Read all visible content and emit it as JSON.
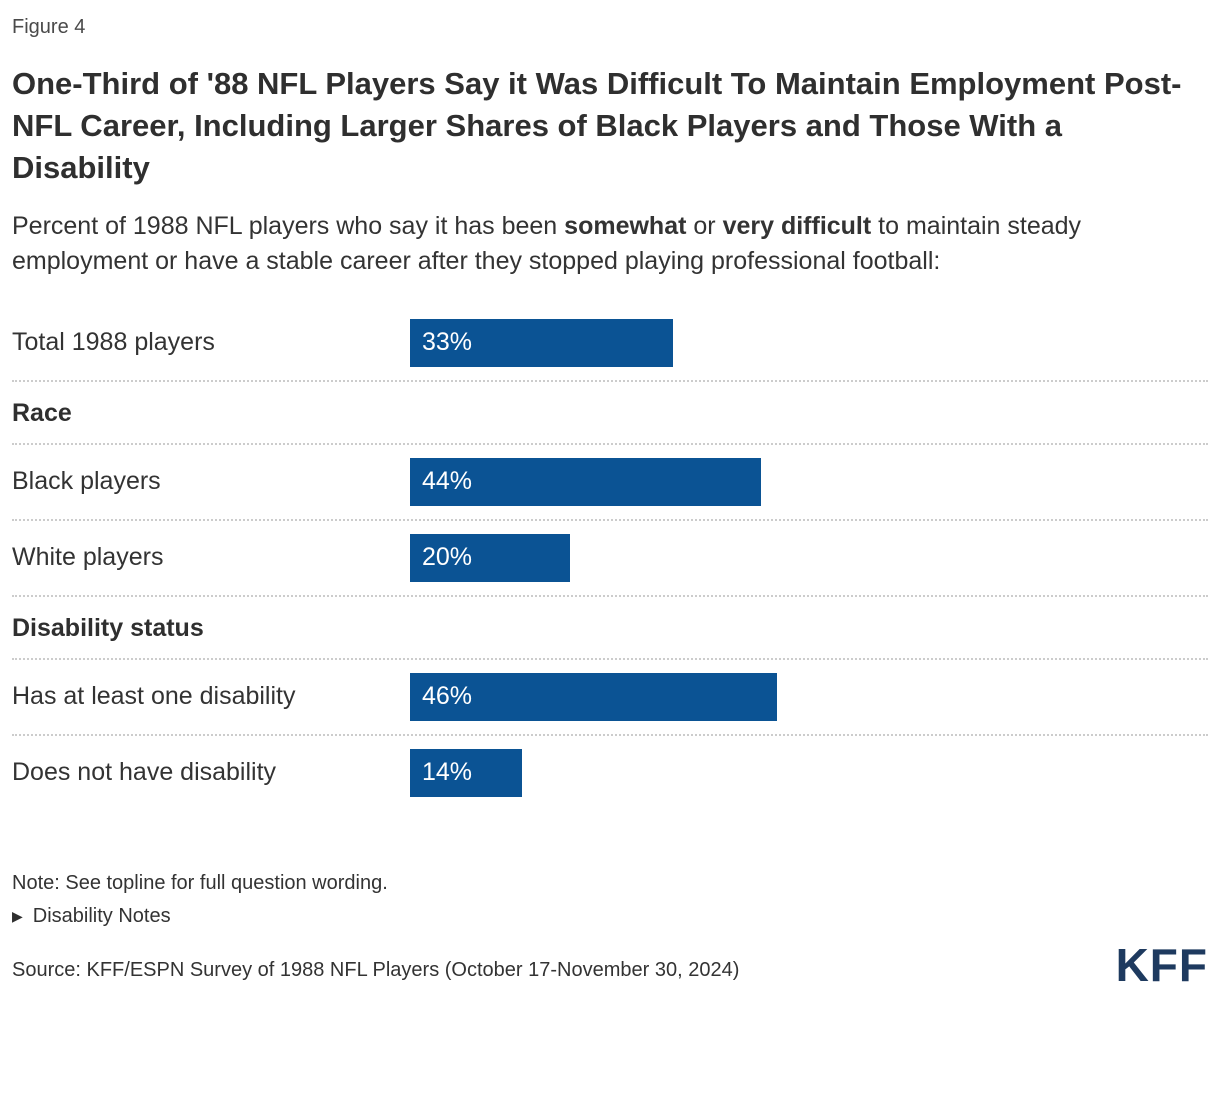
{
  "figure_label": "Figure 4",
  "title": "One-Third of '88 NFL Players Say it Was Difficult To Maintain Employment Post-NFL Career, Including Larger Shares of Black Players and Those With a Disability",
  "subtitle": {
    "segments": [
      {
        "text": "Percent of 1988 NFL players who say it has been ",
        "bold": false
      },
      {
        "text": "somewhat",
        "bold": true
      },
      {
        "text": " or ",
        "bold": false
      },
      {
        "text": "very difficult",
        "bold": true
      },
      {
        "text": " to maintain steady employment or have a stable career after they stopped playing professional football:",
        "bold": false
      }
    ]
  },
  "chart_data": {
    "type": "bar",
    "orientation": "horizontal",
    "axis_max": 100,
    "unit": "%",
    "categories": [
      "Total 1988 players",
      "Black players",
      "White players",
      "Has at least one disability",
      "Does not have disability"
    ],
    "values": [
      33,
      44,
      20,
      46,
      14
    ],
    "sections": [
      {
        "header": "Race",
        "categories": [
          "Black players",
          "White players"
        ]
      },
      {
        "header": "Disability status",
        "categories": [
          "Has at least one disability",
          "Does not have disability"
        ]
      }
    ],
    "rows": [
      {
        "type": "bar",
        "label": "Total 1988 players",
        "value": 33,
        "value_label": "33%"
      },
      {
        "type": "header",
        "label": "Race"
      },
      {
        "type": "bar",
        "label": "Black players",
        "value": 44,
        "value_label": "44%"
      },
      {
        "type": "bar",
        "label": "White players",
        "value": 20,
        "value_label": "20%"
      },
      {
        "type": "header",
        "label": "Disability status"
      },
      {
        "type": "bar",
        "label": "Has at least one disability",
        "value": 46,
        "value_label": "46%"
      },
      {
        "type": "bar",
        "label": "Does not have disability",
        "value": 14,
        "value_label": "14%"
      }
    ]
  },
  "footer": {
    "note": "Note: See topline for full question wording.",
    "disclosure": {
      "icon": "▶",
      "label": "Disability Notes"
    },
    "source": "Source: KFF/ESPN Survey of 1988 NFL Players (October 17-November 30, 2024)",
    "logo_text": "KFF"
  },
  "colors": {
    "bar": "#0B5394",
    "logo": "#1E3A5F",
    "separator": "#CCCCCC"
  }
}
